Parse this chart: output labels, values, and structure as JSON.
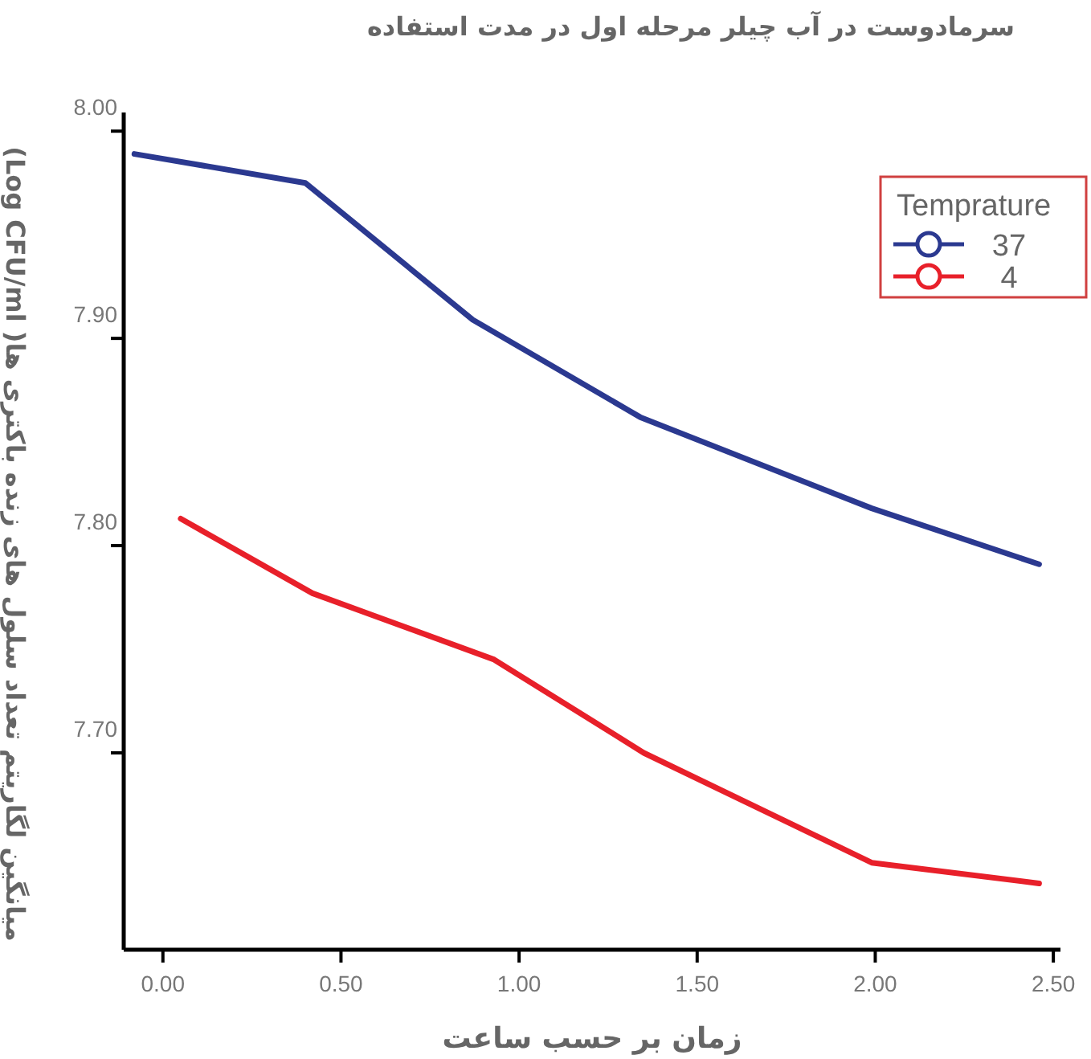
{
  "chart_data": {
    "type": "line",
    "title": "سرمادوست در آب چیلر مرحله اول در مدت استفاده",
    "xlabel": "زمان بر حسب ساعت",
    "ylabel": "میانگین لگاریتم تعداد سلول های زنده باکتری ها( Log CFU/ml)",
    "legend_title": "Temprature",
    "legend": "top right",
    "xlim": [
      -0.11,
      2.52
    ],
    "ylim": [
      7.605,
      8.009
    ],
    "xticks": [
      {
        "value": 0,
        "label": "0.00"
      },
      {
        "value": 0.5,
        "label": "0.50"
      },
      {
        "value": 1,
        "label": "1.00"
      },
      {
        "value": 1.5,
        "label": "1.50"
      },
      {
        "value": 2,
        "label": "2.00"
      },
      {
        "value": 2.5,
        "label": "2.50"
      }
    ],
    "yticks": [
      {
        "value": 7.7,
        "label": "7.70"
      },
      {
        "value": 7.8,
        "label": "7.80"
      },
      {
        "value": 7.9,
        "label": "7.90"
      },
      {
        "value": 8,
        "label": "8.00"
      }
    ],
    "series": [
      {
        "name": "37",
        "color": "#2b3990",
        "x": [
          -0.08,
          0.4,
          0.87,
          1.34,
          1.99,
          2.46
        ],
        "values": [
          7.989,
          7.975,
          7.909,
          7.862,
          7.818,
          7.791
        ]
      },
      {
        "name": "4",
        "color": "#e8202a",
        "x": [
          0.05,
          0.42,
          0.93,
          1.35,
          1.99,
          2.46
        ],
        "values": [
          7.813,
          7.777,
          7.745,
          7.7,
          7.647,
          7.637
        ]
      }
    ]
  }
}
